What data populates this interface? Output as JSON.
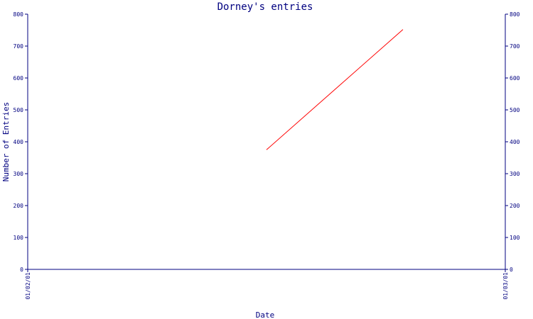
{
  "chart_data": {
    "type": "line",
    "title": "Dorney's entries",
    "xlabel": "Date",
    "ylabel": "Number of Entries",
    "ylim": [
      0,
      800
    ],
    "yticks": [
      0,
      100,
      200,
      300,
      400,
      500,
      600,
      700,
      800
    ],
    "xlim": [
      "01/02/01",
      "01/03/01"
    ],
    "xticks": [
      "01/02/01",
      "01/03/01"
    ],
    "grid": false,
    "series": [
      {
        "color": "#ff0000",
        "x": [
          "01/02/15",
          "01/02/23"
        ],
        "y": [
          375,
          752
        ]
      }
    ],
    "colors": {
      "axis": "#000080",
      "text": "#000080",
      "background": "#ffffff"
    }
  }
}
